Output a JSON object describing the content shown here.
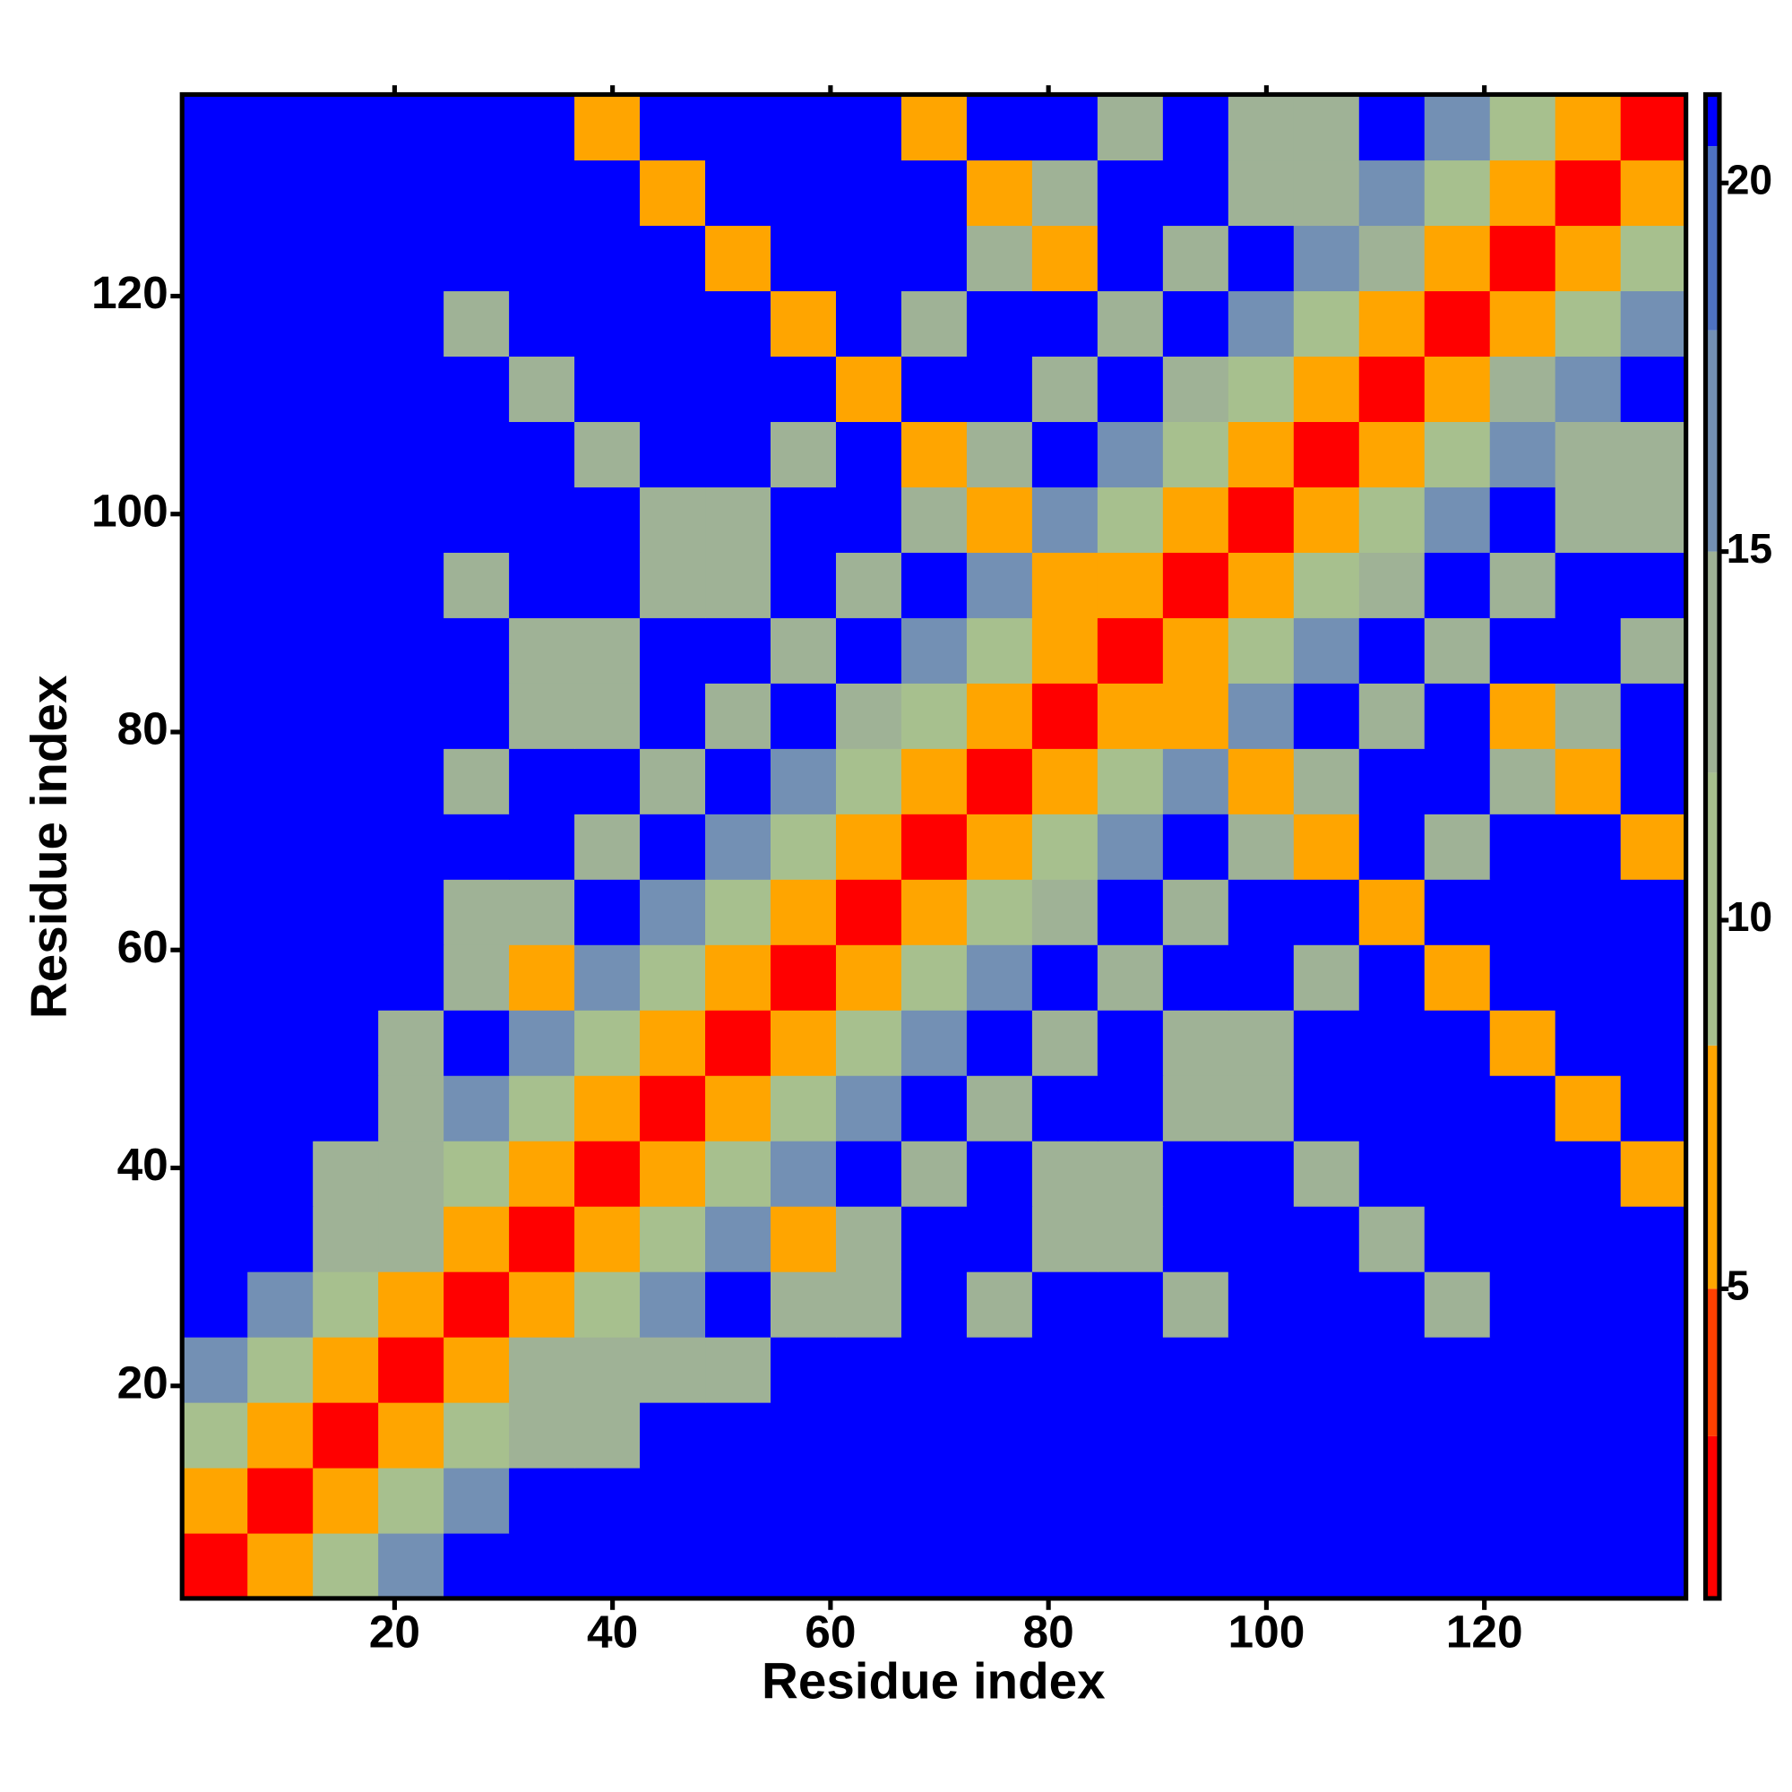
{
  "chart_data": {
    "type": "heatmap",
    "x_label": "Residue index",
    "y_label": "Residue index",
    "x": [
      3.5,
      9.5,
      15.5,
      21.5,
      27.5,
      33.5,
      39.5,
      45.5,
      51.5,
      57.5,
      63.5,
      69.5,
      75.5,
      81.5,
      87.5,
      93.5,
      99.5,
      105.5,
      111.5,
      117.5,
      123.5,
      129.5,
      135.5
    ],
    "y": [
      3.5,
      9.5,
      15.5,
      21.5,
      27.5,
      33.5,
      39.5,
      45.5,
      51.5,
      57.5,
      63.5,
      69.5,
      75.5,
      81.5,
      87.5,
      93.5,
      99.5,
      105.5,
      111.5,
      117.5,
      123.5,
      129.5,
      135.5
    ],
    "z": [
      [
        2,
        6,
        11,
        17,
        21,
        21,
        21,
        21,
        21,
        21,
        21,
        21,
        21,
        21,
        21,
        21,
        21,
        21,
        21,
        21,
        21,
        21,
        21
      ],
      [
        6,
        2,
        8,
        11,
        17,
        21,
        21,
        21,
        21,
        21,
        21,
        21,
        21,
        21,
        21,
        21,
        21,
        21,
        21,
        21,
        21,
        21,
        21
      ],
      [
        11,
        8,
        2,
        8,
        11,
        15,
        15,
        21,
        21,
        21,
        21,
        21,
        21,
        21,
        21,
        21,
        21,
        21,
        21,
        21,
        21,
        21,
        21
      ],
      [
        17,
        11,
        8,
        2,
        8,
        15,
        15,
        15,
        15,
        21,
        21,
        21,
        21,
        21,
        21,
        21,
        21,
        21,
        21,
        21,
        21,
        21,
        21
      ],
      [
        21,
        17,
        11,
        8,
        2,
        8,
        11,
        17,
        21,
        13,
        13,
        21,
        13,
        21,
        21,
        13,
        21,
        21,
        21,
        13,
        21,
        21,
        21
      ],
      [
        21,
        21,
        15,
        15,
        8,
        2,
        8,
        11,
        17,
        6,
        13,
        21,
        21,
        13,
        13,
        21,
        21,
        21,
        13,
        21,
        21,
        21,
        21
      ],
      [
        21,
        21,
        15,
        15,
        11,
        8,
        2,
        8,
        11,
        17,
        21,
        13,
        21,
        13,
        13,
        21,
        21,
        13,
        21,
        21,
        21,
        21,
        6
      ],
      [
        21,
        21,
        21,
        15,
        17,
        11,
        8,
        2,
        8,
        11,
        17,
        21,
        13,
        21,
        21,
        13,
        13,
        21,
        21,
        21,
        21,
        6,
        21
      ],
      [
        21,
        21,
        21,
        15,
        21,
        17,
        11,
        8,
        2,
        8,
        11,
        17,
        21,
        13,
        21,
        13,
        13,
        21,
        21,
        21,
        6,
        21,
        21
      ],
      [
        21,
        21,
        21,
        21,
        13,
        6,
        17,
        11,
        8,
        2,
        8,
        11,
        17,
        21,
        13,
        21,
        21,
        13,
        21,
        6,
        21,
        21,
        21
      ],
      [
        21,
        21,
        21,
        21,
        13,
        13,
        21,
        17,
        11,
        8,
        2,
        8,
        11,
        13,
        21,
        13,
        21,
        21,
        6,
        21,
        21,
        21,
        21
      ],
      [
        21,
        21,
        21,
        21,
        21,
        21,
        13,
        21,
        17,
        11,
        8,
        2,
        8,
        11,
        17,
        21,
        13,
        6,
        21,
        13,
        21,
        21,
        7
      ],
      [
        21,
        21,
        21,
        21,
        13,
        21,
        21,
        13,
        21,
        17,
        11,
        8,
        2,
        8,
        11,
        17,
        6,
        13,
        21,
        21,
        13,
        7,
        21
      ],
      [
        21,
        21,
        21,
        21,
        21,
        13,
        13,
        21,
        13,
        21,
        13,
        11,
        8,
        2,
        8,
        6,
        17,
        21,
        13,
        21,
        7,
        13,
        21
      ],
      [
        21,
        21,
        21,
        21,
        21,
        13,
        13,
        21,
        21,
        13,
        21,
        17,
        11,
        8,
        2,
        8,
        11,
        17,
        21,
        13,
        21,
        21,
        13
      ],
      [
        21,
        21,
        21,
        21,
        13,
        21,
        21,
        13,
        13,
        21,
        13,
        21,
        17,
        6,
        8,
        2,
        8,
        11,
        13,
        21,
        13,
        21,
        21
      ],
      [
        21,
        21,
        21,
        21,
        21,
        21,
        21,
        13,
        13,
        21,
        21,
        13,
        6,
        17,
        11,
        8,
        2,
        8,
        11,
        17,
        21,
        13,
        13
      ],
      [
        21,
        21,
        21,
        21,
        21,
        21,
        13,
        21,
        21,
        13,
        21,
        6,
        13,
        21,
        17,
        11,
        8,
        2,
        8,
        11,
        17,
        13,
        13
      ],
      [
        21,
        21,
        21,
        21,
        21,
        13,
        21,
        21,
        21,
        21,
        6,
        21,
        21,
        13,
        21,
        13,
        11,
        8,
        2,
        8,
        13,
        17,
        21
      ],
      [
        21,
        21,
        21,
        21,
        13,
        21,
        21,
        21,
        21,
        6,
        21,
        13,
        21,
        21,
        13,
        21,
        17,
        11,
        8,
        2,
        8,
        11,
        17
      ],
      [
        21,
        21,
        21,
        21,
        21,
        21,
        21,
        21,
        6,
        21,
        21,
        21,
        13,
        7,
        21,
        13,
        21,
        17,
        13,
        8,
        2,
        8,
        11
      ],
      [
        21,
        21,
        21,
        21,
        21,
        21,
        21,
        6,
        21,
        21,
        21,
        21,
        7,
        13,
        21,
        21,
        13,
        13,
        17,
        11,
        8,
        2,
        8
      ],
      [
        21,
        21,
        21,
        21,
        21,
        21,
        6,
        21,
        21,
        21,
        21,
        7,
        21,
        21,
        13,
        21,
        13,
        13,
        21,
        17,
        11,
        8,
        2
      ]
    ],
    "xlim": [
      0.5,
      138.5
    ],
    "ylim": [
      0.5,
      138.5
    ],
    "xticks": [
      20,
      40,
      60,
      80,
      100,
      120
    ],
    "yticks": [
      20,
      40,
      60,
      80,
      100,
      120
    ],
    "zlim": [
      0.8,
      21.2
    ],
    "zticks": [
      5,
      10,
      15,
      20
    ],
    "colorscale": [
      [
        3,
        "#ff0000"
      ],
      [
        5,
        "#ff4000"
      ],
      [
        8.3,
        "#ffa500"
      ],
      [
        12,
        "#a7c08e"
      ],
      [
        15,
        "#9fb296"
      ],
      [
        18,
        "#7390b4"
      ],
      [
        20.5,
        "#4e72c2"
      ],
      [
        21.2,
        "#0000ff"
      ]
    ]
  }
}
